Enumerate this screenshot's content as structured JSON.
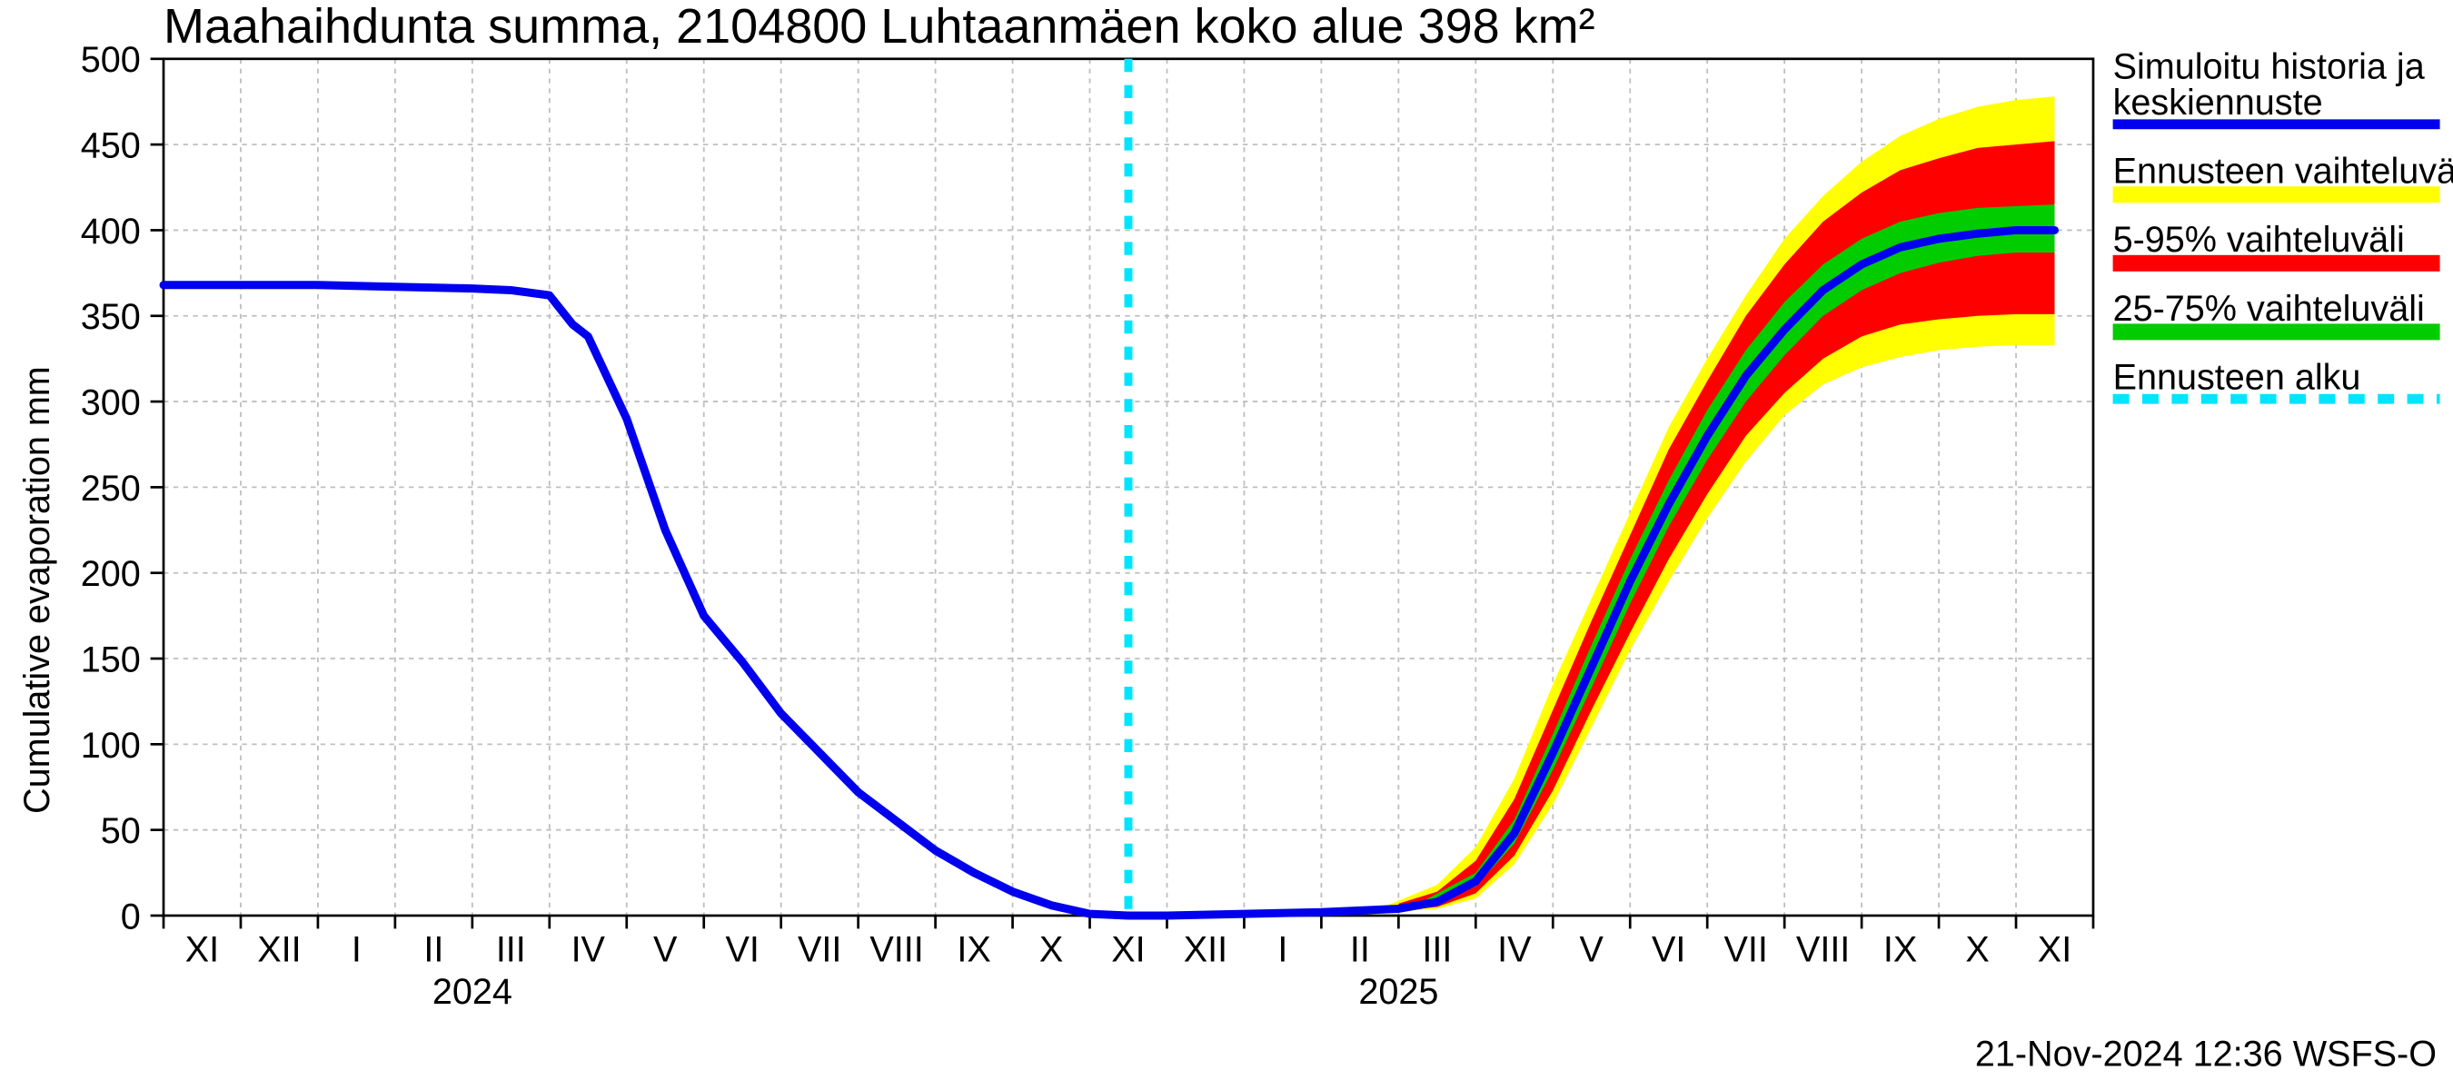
{
  "chart": {
    "type": "line-with-bands",
    "title": "Maahaihdunta summa, 2104800 Luhtaanmäen koko alue 398 km²",
    "ylabel": "Cumulative evaporation   mm",
    "footer": "21-Nov-2024 12:36 WSFS-O",
    "background_color": "#ffffff",
    "grid_color": "#bfbfbf",
    "axis_color": "#000000",
    "title_fontsize": 30,
    "axis_fontsize": 22,
    "ylim": [
      0,
      500
    ],
    "ytick_step": 50,
    "x_major_labels": [
      "XI",
      "XII",
      "I",
      "II",
      "III",
      "IV",
      "V",
      "VI",
      "VII",
      "VIII",
      "IX",
      "X",
      "XI",
      "XII",
      "I",
      "II",
      "III",
      "IV",
      "V",
      "VI",
      "VII",
      "VIII",
      "IX",
      "X",
      "XI"
    ],
    "x_year_labels": [
      {
        "index": 3.5,
        "text": "2024"
      },
      {
        "index": 15.5,
        "text": "2025"
      }
    ],
    "forecast_start_index": 12.5,
    "colors": {
      "main_line": "#0000ee",
      "range_full": "#ffff00",
      "range_5_95": "#ff0000",
      "range_25_75": "#00cc00",
      "forecast_line": "#00e5ff"
    },
    "line_widths": {
      "main_line": 5,
      "forecast_line": 5,
      "band_stroke": 0
    },
    "series": {
      "main": [
        {
          "x": 0.0,
          "y": 368
        },
        {
          "x": 1.0,
          "y": 368
        },
        {
          "x": 2.0,
          "y": 368
        },
        {
          "x": 3.0,
          "y": 367
        },
        {
          "x": 4.0,
          "y": 366
        },
        {
          "x": 4.5,
          "y": 365
        },
        {
          "x": 5.0,
          "y": 362
        },
        {
          "x": 5.3,
          "y": 345
        },
        {
          "x": 5.5,
          "y": 338
        },
        {
          "x": 6.0,
          "y": 290
        },
        {
          "x": 6.5,
          "y": 225
        },
        {
          "x": 7.0,
          "y": 175
        },
        {
          "x": 7.5,
          "y": 148
        },
        {
          "x": 8.0,
          "y": 118
        },
        {
          "x": 8.5,
          "y": 95
        },
        {
          "x": 9.0,
          "y": 72
        },
        {
          "x": 9.5,
          "y": 55
        },
        {
          "x": 10.0,
          "y": 38
        },
        {
          "x": 10.5,
          "y": 25
        },
        {
          "x": 11.0,
          "y": 14
        },
        {
          "x": 11.5,
          "y": 6
        },
        {
          "x": 12.0,
          "y": 1
        },
        {
          "x": 12.5,
          "y": 0
        },
        {
          "x": 13.0,
          "y": 0
        },
        {
          "x": 14.0,
          "y": 1
        },
        {
          "x": 15.0,
          "y": 2
        },
        {
          "x": 16.0,
          "y": 4
        },
        {
          "x": 16.5,
          "y": 8
        },
        {
          "x": 17.0,
          "y": 20
        },
        {
          "x": 17.5,
          "y": 48
        },
        {
          "x": 18.0,
          "y": 95
        },
        {
          "x": 18.5,
          "y": 145
        },
        {
          "x": 19.0,
          "y": 195
        },
        {
          "x": 19.5,
          "y": 240
        },
        {
          "x": 20.0,
          "y": 280
        },
        {
          "x": 20.5,
          "y": 315
        },
        {
          "x": 21.0,
          "y": 342
        },
        {
          "x": 21.5,
          "y": 365
        },
        {
          "x": 22.0,
          "y": 380
        },
        {
          "x": 22.5,
          "y": 390
        },
        {
          "x": 23.0,
          "y": 395
        },
        {
          "x": 23.5,
          "y": 398
        },
        {
          "x": 24.0,
          "y": 400
        },
        {
          "x": 24.5,
          "y": 400
        }
      ],
      "band_full": [
        {
          "x": 15.8,
          "lo": 2,
          "hi": 5
        },
        {
          "x": 16.5,
          "lo": 4,
          "hi": 18
        },
        {
          "x": 17.0,
          "lo": 10,
          "hi": 40
        },
        {
          "x": 17.5,
          "lo": 30,
          "hi": 80
        },
        {
          "x": 18.0,
          "lo": 65,
          "hi": 135
        },
        {
          "x": 18.5,
          "lo": 110,
          "hi": 185
        },
        {
          "x": 19.0,
          "lo": 155,
          "hi": 235
        },
        {
          "x": 19.5,
          "lo": 195,
          "hi": 285
        },
        {
          "x": 20.0,
          "lo": 232,
          "hi": 325
        },
        {
          "x": 20.5,
          "lo": 265,
          "hi": 362
        },
        {
          "x": 21.0,
          "lo": 292,
          "hi": 395
        },
        {
          "x": 21.5,
          "lo": 310,
          "hi": 420
        },
        {
          "x": 22.0,
          "lo": 320,
          "hi": 440
        },
        {
          "x": 22.5,
          "lo": 326,
          "hi": 455
        },
        {
          "x": 23.0,
          "lo": 330,
          "hi": 465
        },
        {
          "x": 23.5,
          "lo": 332,
          "hi": 472
        },
        {
          "x": 24.0,
          "lo": 333,
          "hi": 476
        },
        {
          "x": 24.5,
          "lo": 333,
          "hi": 478
        }
      ],
      "band_5_95": [
        {
          "x": 16.0,
          "lo": 3,
          "hi": 7
        },
        {
          "x": 16.5,
          "lo": 5,
          "hi": 14
        },
        {
          "x": 17.0,
          "lo": 13,
          "hi": 32
        },
        {
          "x": 17.5,
          "lo": 35,
          "hi": 68
        },
        {
          "x": 18.0,
          "lo": 73,
          "hi": 120
        },
        {
          "x": 18.5,
          "lo": 120,
          "hi": 172
        },
        {
          "x": 19.0,
          "lo": 165,
          "hi": 222
        },
        {
          "x": 19.5,
          "lo": 208,
          "hi": 272
        },
        {
          "x": 20.0,
          "lo": 246,
          "hi": 312
        },
        {
          "x": 20.5,
          "lo": 280,
          "hi": 350
        },
        {
          "x": 21.0,
          "lo": 305,
          "hi": 380
        },
        {
          "x": 21.5,
          "lo": 325,
          "hi": 405
        },
        {
          "x": 22.0,
          "lo": 338,
          "hi": 422
        },
        {
          "x": 22.5,
          "lo": 345,
          "hi": 435
        },
        {
          "x": 23.0,
          "lo": 348,
          "hi": 442
        },
        {
          "x": 23.5,
          "lo": 350,
          "hi": 448
        },
        {
          "x": 24.0,
          "lo": 351,
          "hi": 450
        },
        {
          "x": 24.5,
          "lo": 351,
          "hi": 452
        }
      ],
      "band_25_75": [
        {
          "x": 16.3,
          "lo": 5,
          "hi": 8
        },
        {
          "x": 17.0,
          "lo": 17,
          "hi": 25
        },
        {
          "x": 17.5,
          "lo": 42,
          "hi": 56
        },
        {
          "x": 18.0,
          "lo": 85,
          "hi": 106
        },
        {
          "x": 18.5,
          "lo": 133,
          "hi": 158
        },
        {
          "x": 19.0,
          "lo": 182,
          "hi": 208
        },
        {
          "x": 19.5,
          "lo": 227,
          "hi": 254
        },
        {
          "x": 20.0,
          "lo": 266,
          "hi": 295
        },
        {
          "x": 20.5,
          "lo": 300,
          "hi": 330
        },
        {
          "x": 21.0,
          "lo": 327,
          "hi": 358
        },
        {
          "x": 21.5,
          "lo": 350,
          "hi": 380
        },
        {
          "x": 22.0,
          "lo": 365,
          "hi": 395
        },
        {
          "x": 22.5,
          "lo": 375,
          "hi": 405
        },
        {
          "x": 23.0,
          "lo": 381,
          "hi": 410
        },
        {
          "x": 23.5,
          "lo": 385,
          "hi": 413
        },
        {
          "x": 24.0,
          "lo": 387,
          "hi": 414
        },
        {
          "x": 24.5,
          "lo": 387,
          "hi": 415
        }
      ]
    },
    "legend": {
      "items": [
        {
          "label": "Simuloitu historia ja keskiennuste",
          "type": "line",
          "color": "#0000ee"
        },
        {
          "label": "Ennusteen vaihteluväli",
          "type": "band",
          "color": "#ffff00"
        },
        {
          "label": "5-95% vaihteluväli",
          "type": "band",
          "color": "#ff0000"
        },
        {
          "label": "25-75% vaihteluväli",
          "type": "band",
          "color": "#00cc00"
        },
        {
          "label": "Ennusteen alku",
          "type": "dashed",
          "color": "#00e5ff"
        }
      ]
    }
  }
}
